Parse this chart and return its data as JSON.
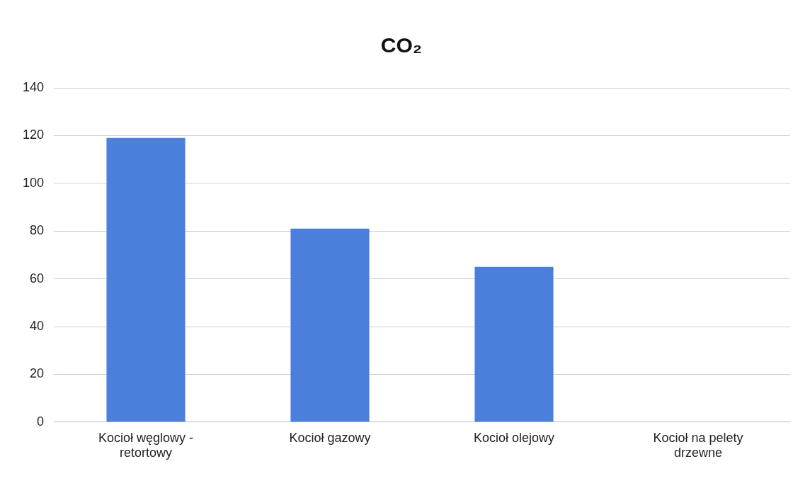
{
  "chart_data": {
    "type": "bar",
    "title": "CO₂",
    "categories": [
      "Kocioł węglowy - retortowy",
      "Kocioł gazowy",
      "Kocioł olejowy",
      "Kocioł na pelety drzewne"
    ],
    "values": [
      119,
      81,
      65,
      0
    ],
    "color": "#4a7fdc",
    "ylim": [
      0,
      140
    ],
    "yticks": [
      0,
      20,
      40,
      60,
      80,
      100,
      120,
      140
    ],
    "grid": "y",
    "legend": false
  }
}
